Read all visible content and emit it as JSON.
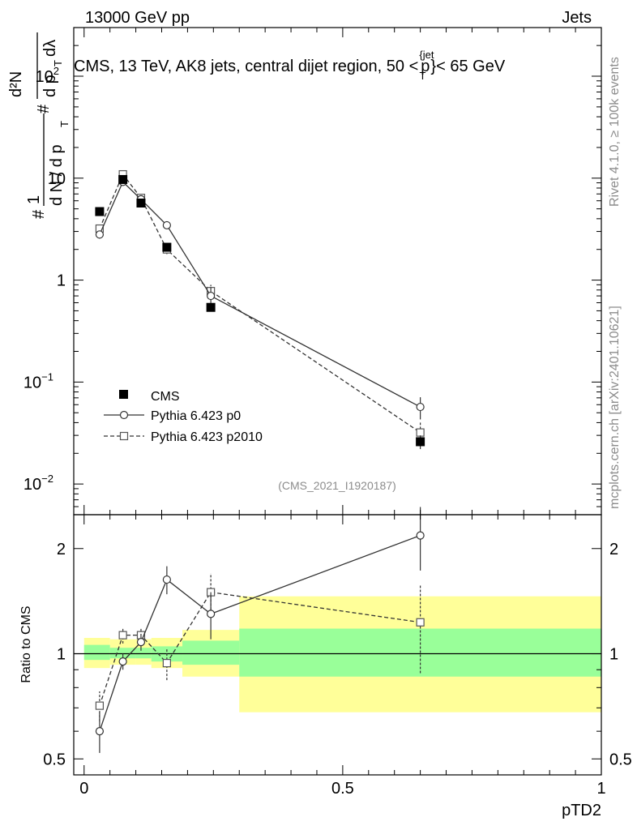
{
  "header": {
    "left": "13000 GeV pp",
    "right": "Jets"
  },
  "side_labels": {
    "rivet": "Rivet 4.1.0, ≥ 100k events",
    "mcplots": "mcplots.cern.ch [arXiv:2401.10621]"
  },
  "chart_data": [
    {
      "type": "line",
      "panel": "main",
      "title": "CMS, 13 TeV, AK8 jets, central dijet region, 50 <",
      "title_p": "p",
      "title_sup": "{jet",
      "title_sub": "T",
      "title_end": "}< 65 GeV",
      "ylabel_lines": [
        "#",
        "1",
        "d N / d p",
        "T",
        "#",
        "d²N",
        "d p",
        "T",
        "dλ"
      ],
      "yscale": "log",
      "ylim": [
        0.005,
        300
      ],
      "xlim": [
        -0.02,
        1.0
      ],
      "y_ticks": [
        {
          "value": 100,
          "label": "10",
          "sup": "2"
        },
        {
          "value": 10,
          "label": "10",
          "sup": ""
        },
        {
          "value": 1,
          "label": "1",
          "sup": ""
        },
        {
          "value": 0.1,
          "label": "10",
          "sup": "−1"
        },
        {
          "value": 0.01,
          "label": "10",
          "sup": "−2"
        }
      ],
      "watermark": "(CMS_2021_I1920187)",
      "legend": [
        {
          "label": "CMS",
          "style": "filled-square"
        },
        {
          "label": "Pythia 6.423 p0",
          "style": "solid-circle"
        },
        {
          "label": "Pythia 6.423 p2010",
          "style": "dashed-square"
        }
      ],
      "series": [
        {
          "name": "CMS",
          "x": [
            0.03,
            0.075,
            0.11,
            0.16,
            0.245,
            0.65
          ],
          "y": [
            4.7,
            9.7,
            5.7,
            2.1,
            0.54,
            0.026
          ],
          "err": [
            0.2,
            0.4,
            0.3,
            0.1,
            0.03,
            0.004
          ]
        },
        {
          "name": "Pythia 6.423 p0",
          "x": [
            0.03,
            0.075,
            0.11,
            0.16,
            0.245,
            0.65
          ],
          "y": [
            2.8,
            9.2,
            6.2,
            3.45,
            0.7,
            0.057
          ],
          "err": [
            0.25,
            0.4,
            0.4,
            0.2,
            0.15,
            0.014
          ]
        },
        {
          "name": "Pythia 6.423 p2010",
          "x": [
            0.03,
            0.075,
            0.11,
            0.16,
            0.245,
            0.65
          ],
          "y": [
            3.2,
            10.9,
            6.4,
            2.0,
            0.78,
            0.032
          ],
          "err": [
            0.3,
            0.45,
            0.4,
            0.2,
            0.12,
            0.008
          ]
        }
      ]
    },
    {
      "type": "line",
      "panel": "ratio",
      "ylabel": "Ratio to CMS",
      "xlabel": "pTD2",
      "yscale": "log",
      "ylim": [
        0.45,
        2.5
      ],
      "xlim": [
        -0.02,
        1.0
      ],
      "y_ticks": [
        {
          "value": 0.5,
          "label": "0.5"
        },
        {
          "value": 1,
          "label": "1"
        },
        {
          "value": 2,
          "label": "2"
        }
      ],
      "x_ticks": [
        {
          "value": 0,
          "label": "0"
        },
        {
          "value": 0.5,
          "label": "0.5"
        },
        {
          "value": 1,
          "label": "1"
        }
      ],
      "bands": [
        {
          "x0": 0.0,
          "x1": 0.05,
          "yellow": [
            0.91,
            1.11
          ],
          "green": [
            0.96,
            1.06
          ]
        },
        {
          "x0": 0.05,
          "x1": 0.1,
          "yellow": [
            0.93,
            1.1
          ],
          "green": [
            0.97,
            1.04
          ]
        },
        {
          "x0": 0.1,
          "x1": 0.13,
          "yellow": [
            0.93,
            1.1
          ],
          "green": [
            0.97,
            1.04
          ]
        },
        {
          "x0": 0.13,
          "x1": 0.19,
          "yellow": [
            0.91,
            1.11
          ],
          "green": [
            0.95,
            1.05
          ]
        },
        {
          "x0": 0.19,
          "x1": 0.3,
          "yellow": [
            0.86,
            1.17
          ],
          "green": [
            0.93,
            1.09
          ]
        },
        {
          "x0": 0.3,
          "x1": 1.0,
          "yellow": [
            0.68,
            1.46
          ],
          "green": [
            0.86,
            1.18
          ]
        }
      ],
      "series": [
        {
          "name": "Pythia 6.423 p0",
          "x": [
            0.03,
            0.075,
            0.11,
            0.16,
            0.245,
            0.65
          ],
          "y": [
            0.6,
            0.95,
            1.08,
            1.63,
            1.3,
            2.18
          ],
          "err": [
            0.08,
            0.05,
            0.06,
            0.15,
            0.2,
            0.45
          ]
        },
        {
          "name": "Pythia 6.423 p2010",
          "x": [
            0.03,
            0.075,
            0.11,
            0.16,
            0.245,
            0.65
          ],
          "y": [
            0.71,
            1.13,
            1.13,
            0.94,
            1.5,
            1.23
          ],
          "err": [
            0.07,
            0.06,
            0.06,
            0.1,
            0.2,
            0.35
          ]
        }
      ]
    }
  ]
}
